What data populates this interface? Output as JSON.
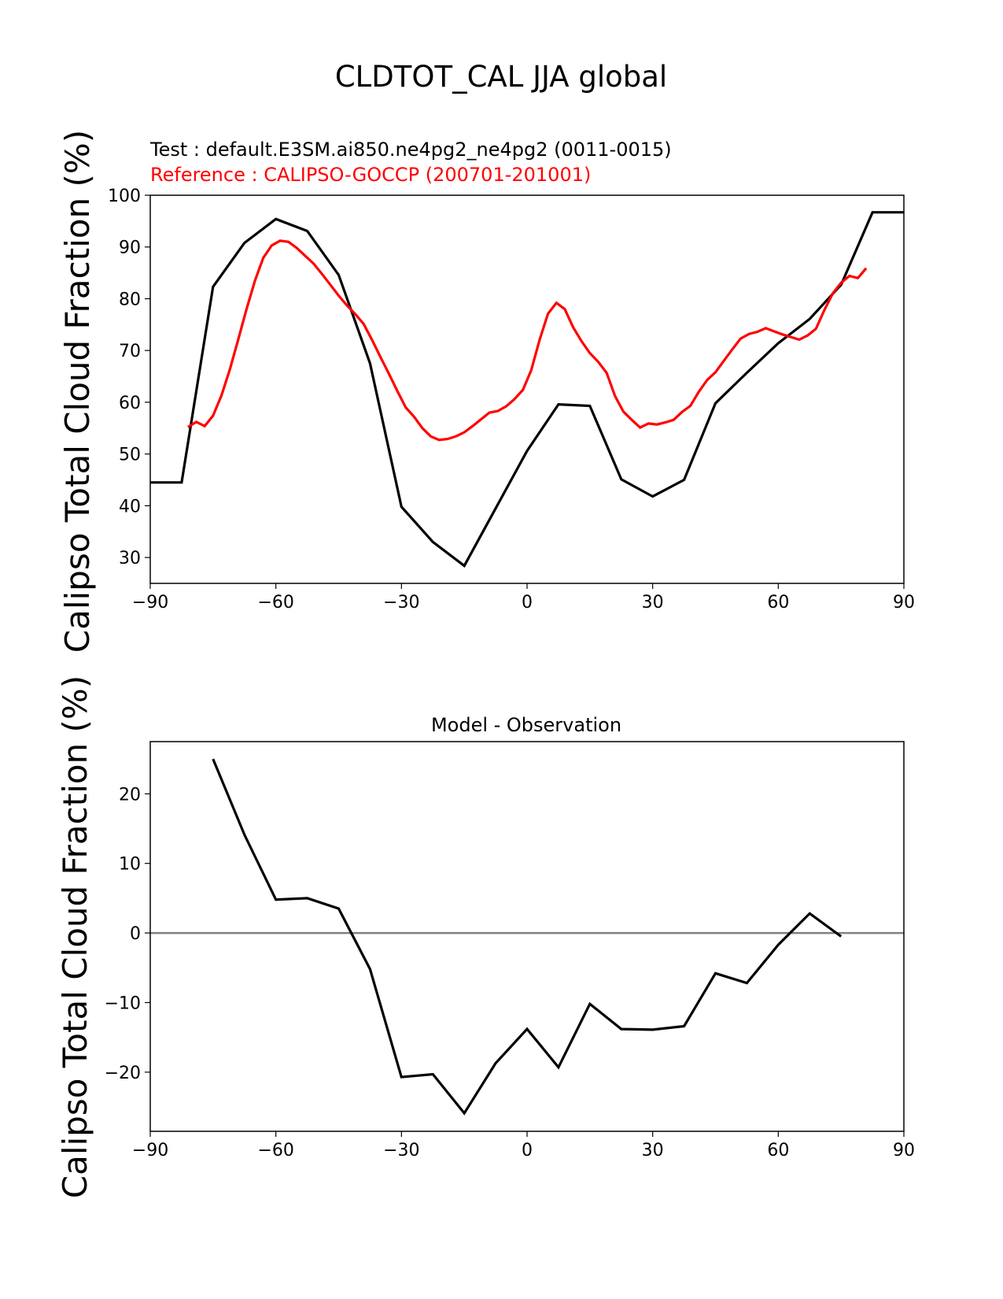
{
  "figure_title": "CLDTOT_CAL JJA global",
  "chart_data": [
    {
      "type": "line",
      "id": "top",
      "test_label": "Test : default.E3SM.ai850.ne4pg2_ne4pg2 (0011-0015)",
      "reference_label": "Reference : CALIPSO-GOCCP (200701-201001)",
      "ylabel": "Calipso Total Cloud Fraction (%)",
      "xlabel": "",
      "xlim": [
        -90,
        90
      ],
      "ylim": [
        25,
        100
      ],
      "xticks": [
        -90,
        -60,
        -30,
        0,
        30,
        60,
        90
      ],
      "xtick_labels": [
        "−90",
        "−60",
        "−30",
        "0",
        "30",
        "60",
        "90"
      ],
      "yticks": [
        30,
        40,
        50,
        60,
        70,
        80,
        90,
        100
      ],
      "ytick_labels": [
        "30",
        "40",
        "50",
        "60",
        "70",
        "80",
        "90",
        "100"
      ],
      "series": [
        {
          "name": "Test",
          "color": "#000000",
          "x": [
            -90,
            -82.5,
            -75,
            -67.5,
            -60,
            -52.5,
            -45,
            -37.5,
            -30,
            -22.5,
            -15,
            -7.5,
            0,
            7.5,
            15,
            22.5,
            30,
            37.5,
            45,
            52.5,
            60,
            67.5,
            75,
            82.5,
            90
          ],
          "y": [
            44.5,
            44.5,
            82.3,
            90.8,
            95.4,
            93.1,
            84.6,
            67.5,
            39.8,
            33.0,
            28.4,
            39.5,
            50.6,
            59.6,
            59.3,
            45.1,
            41.8,
            45.0,
            59.8,
            65.7,
            71.4,
            76.1,
            82.7,
            96.7,
            96.7
          ]
        },
        {
          "name": "Reference",
          "color": "#ff0000",
          "x": [
            -81,
            -79,
            -77,
            -75,
            -73,
            -71,
            -69,
            -67,
            -65,
            -63,
            -61,
            -59,
            -57,
            -55,
            -53,
            -51,
            -49,
            -47,
            -45,
            -43,
            -41,
            -39,
            -37,
            -35,
            -33,
            -31,
            -29,
            -27,
            -25,
            -23,
            -21,
            -19,
            -17,
            -15,
            -13,
            -11,
            -9,
            -7,
            -5,
            -3,
            -1,
            1,
            3,
            5,
            7,
            9,
            11,
            13,
            15,
            17,
            19,
            21,
            23,
            25,
            27,
            29,
            31,
            33,
            35,
            37,
            39,
            41,
            43,
            45,
            47,
            49,
            51,
            53,
            55,
            57,
            59,
            61,
            63,
            65,
            67,
            69,
            71,
            73,
            75,
            77,
            79,
            81
          ],
          "y": [
            55.2,
            56.2,
            55.4,
            57.4,
            61.3,
            66.3,
            72.1,
            78.0,
            83.5,
            87.9,
            90.3,
            91.2,
            91.0,
            89.8,
            88.3,
            86.8,
            84.8,
            82.7,
            80.6,
            78.7,
            77.0,
            75.1,
            72.0,
            68.7,
            65.5,
            62.2,
            59.0,
            57.2,
            55.0,
            53.4,
            52.7,
            52.9,
            53.4,
            54.2,
            55.4,
            56.7,
            58.0,
            58.3,
            59.2,
            60.6,
            62.4,
            66.2,
            72.1,
            77.1,
            79.2,
            78.0,
            74.5,
            71.8,
            69.5,
            67.8,
            65.7,
            61.2,
            58.2,
            56.6,
            55.1,
            55.9,
            55.7,
            56.1,
            56.6,
            58.1,
            59.3,
            62.0,
            64.3,
            65.8,
            68.0,
            70.2,
            72.3,
            73.2,
            73.6,
            74.3,
            73.7,
            73.1,
            72.6,
            72.1,
            72.9,
            74.2,
            77.8,
            81.0,
            83.1,
            84.4,
            84.0,
            85.9
          ]
        }
      ]
    },
    {
      "type": "line",
      "id": "bottom",
      "title": "Model - Observation",
      "ylabel": "Calipso Total Cloud Fraction (%)",
      "xlabel": "",
      "xlim": [
        -90,
        90
      ],
      "ylim": [
        -28.5,
        27.5
      ],
      "xticks": [
        -90,
        -60,
        -30,
        0,
        30,
        60,
        90
      ],
      "xtick_labels": [
        "−90",
        "−60",
        "−30",
        "0",
        "30",
        "60",
        "90"
      ],
      "yticks": [
        -20,
        -10,
        0,
        10,
        20
      ],
      "ytick_labels": [
        "−20",
        "−10",
        "0",
        "10",
        "20"
      ],
      "zero_line_color": "#808080",
      "series": [
        {
          "name": "Difference",
          "color": "#000000",
          "x": [
            -75,
            -67.5,
            -60,
            -52.5,
            -45,
            -37.5,
            -30,
            -22.5,
            -15,
            -7.5,
            0,
            7.5,
            15,
            22.5,
            30,
            37.5,
            45,
            52.5,
            60,
            67.5,
            75
          ],
          "y": [
            25.0,
            14.1,
            4.8,
            5.0,
            3.5,
            -5.2,
            -20.7,
            -20.3,
            -25.9,
            -18.7,
            -13.8,
            -19.3,
            -10.2,
            -13.8,
            -13.9,
            -13.4,
            -5.8,
            -7.2,
            -1.7,
            2.8,
            -0.5
          ]
        }
      ]
    }
  ]
}
